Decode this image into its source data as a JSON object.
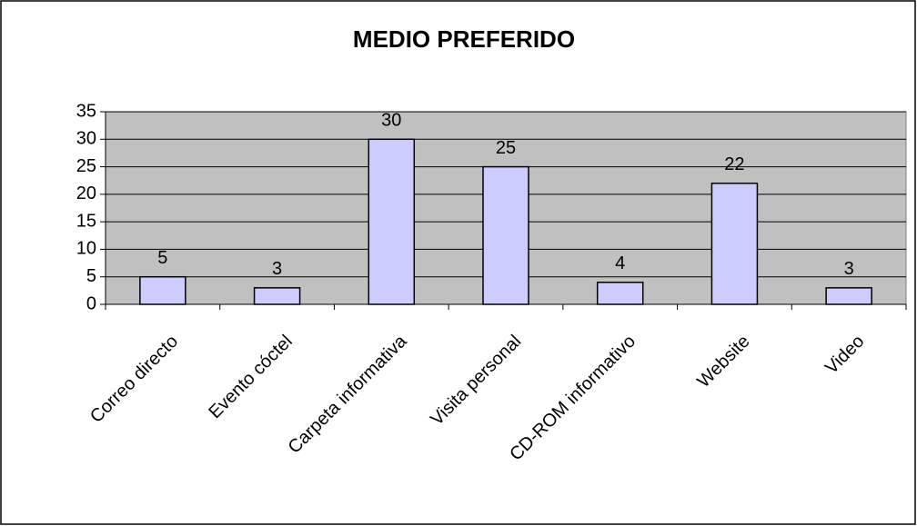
{
  "chart_data": {
    "type": "bar",
    "title": "MEDIO PREFERIDO",
    "categories": [
      "Correo directo",
      "Evento cóctel",
      "Carpeta informativa",
      "Visita personal",
      "CD-ROM informativo",
      "Website",
      "Video"
    ],
    "values": [
      5,
      3,
      30,
      25,
      4,
      22,
      3
    ],
    "color": "#ccccff",
    "ylim": [
      0,
      35
    ],
    "yticks": [
      0,
      5,
      10,
      15,
      20,
      25,
      30,
      35
    ],
    "grid": true
  }
}
